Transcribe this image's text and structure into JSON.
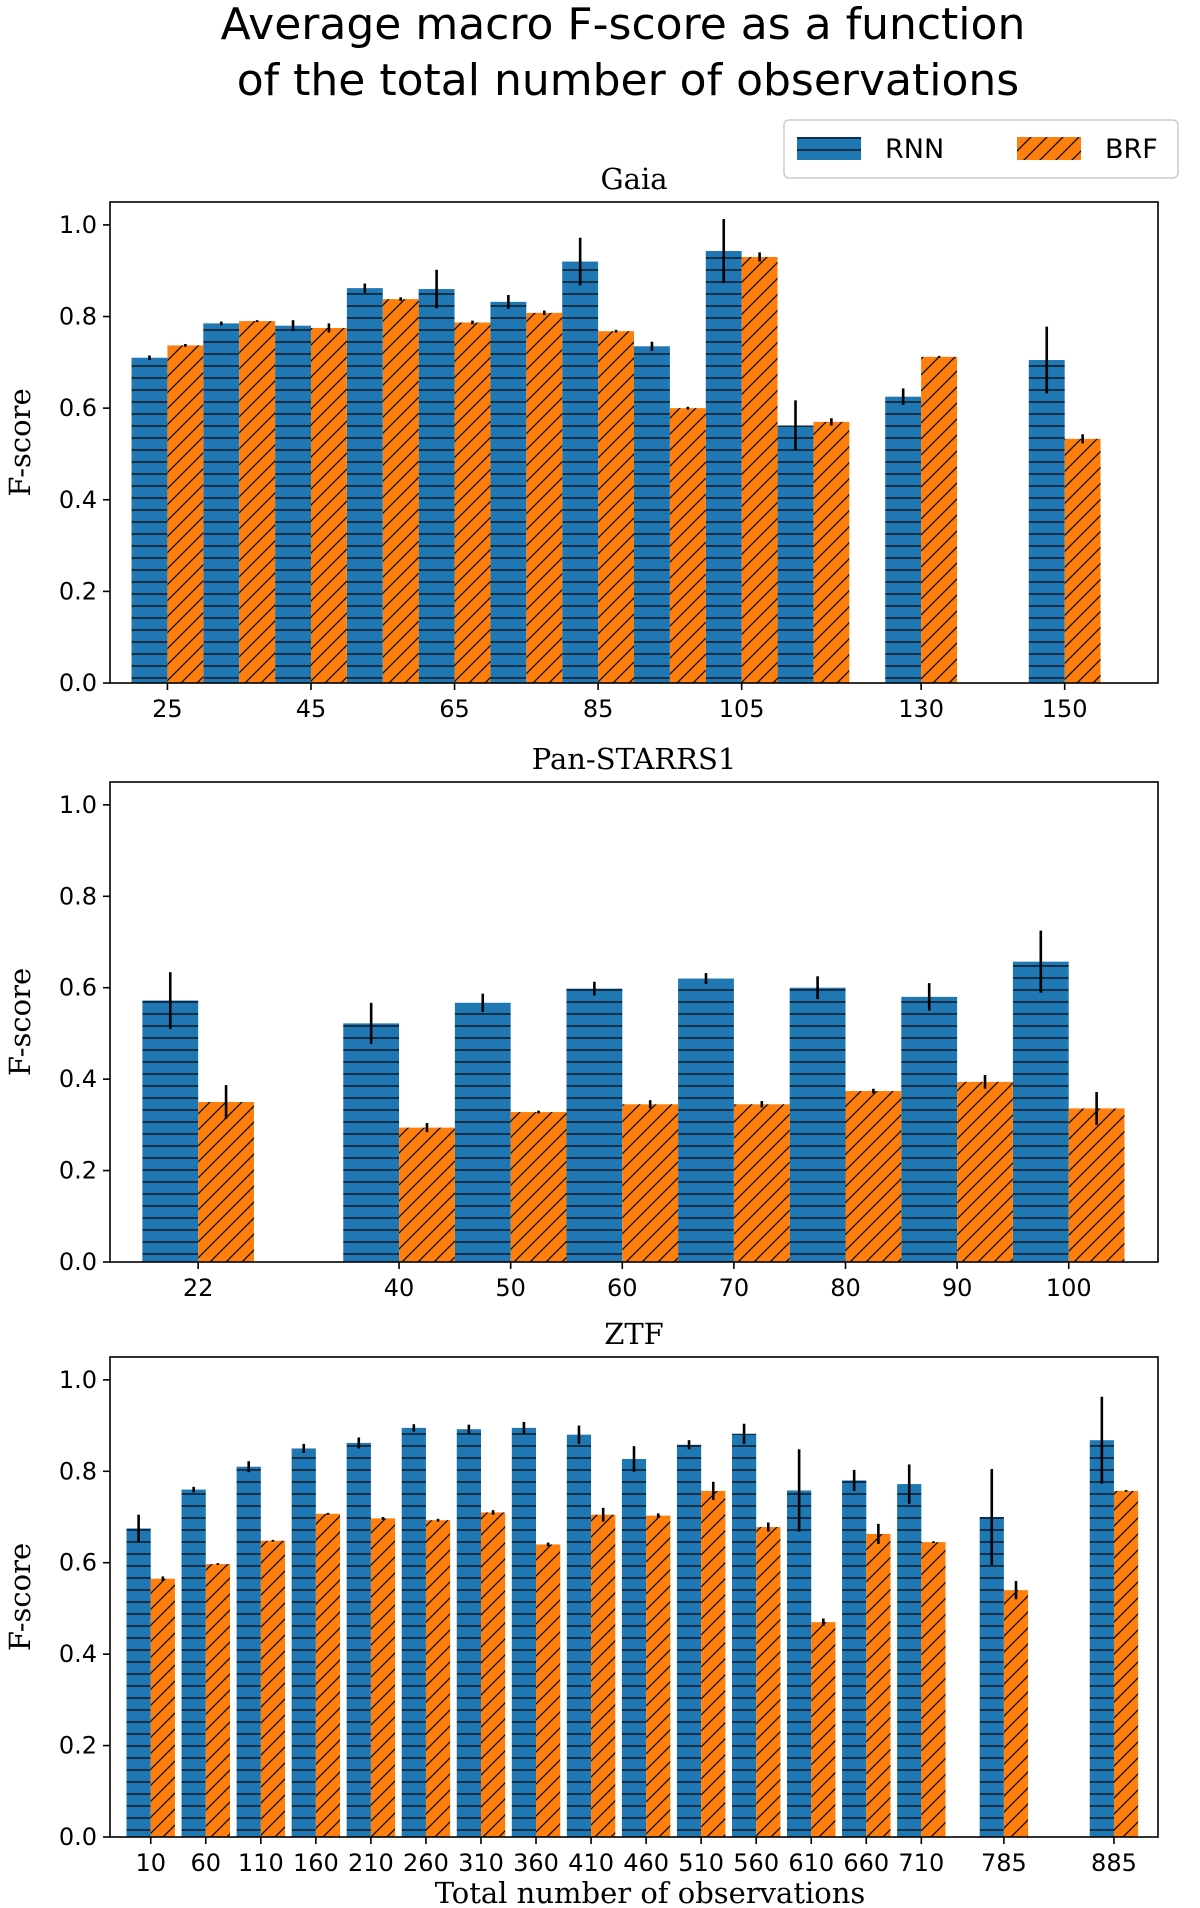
{
  "figure": {
    "title_line1": "Average macro F-score as a function",
    "title_line2": "of the total number of observations",
    "xlabel": "Total number of observations"
  },
  "legend": {
    "items": [
      {
        "label": "RNN",
        "color": "#1f77b4",
        "hatch": "horizontal"
      },
      {
        "label": "BRF",
        "color": "#ff7f0e",
        "hatch": "diagonal"
      }
    ]
  },
  "chart_data": [
    {
      "type": "bar",
      "title": "Gaia",
      "ylabel": "F-score",
      "ylim": [
        0,
        1.05
      ],
      "yticks": [
        "0.0",
        "0.2",
        "0.4",
        "0.6",
        "0.8",
        "1.0"
      ],
      "x": [
        25,
        35,
        45,
        55,
        65,
        75,
        85,
        95,
        105,
        115,
        130,
        150
      ],
      "x_range": [
        17,
        163
      ],
      "tick_values": [
        25,
        45,
        65,
        85,
        105,
        130,
        150
      ],
      "tick_labels": [
        "25",
        "45",
        "65",
        "85",
        "105",
        "130",
        "150"
      ],
      "series": [
        {
          "name": "RNN",
          "values": [
            0.71,
            0.785,
            0.78,
            0.862,
            0.86,
            0.832,
            0.92,
            0.735,
            0.943,
            0.562,
            0.625,
            0.705
          ],
          "errors": [
            0.005,
            0.004,
            0.012,
            0.01,
            0.042,
            0.015,
            0.052,
            0.01,
            0.07,
            0.055,
            0.018,
            0.073
          ]
        },
        {
          "name": "BRF",
          "values": [
            0.737,
            0.79,
            0.775,
            0.838,
            0.787,
            0.808,
            0.768,
            0.6,
            0.93,
            0.57,
            0.712,
            0.533
          ],
          "errors": [
            0.003,
            0.002,
            0.01,
            0.004,
            0.004,
            0.005,
            0.003,
            0.003,
            0.01,
            0.008,
            0.002,
            0.01
          ]
        }
      ]
    },
    {
      "type": "bar",
      "title": "Pan-STARRS1",
      "ylabel": "F-score",
      "ylim": [
        0,
        1.05
      ],
      "yticks": [
        "0.0",
        "0.2",
        "0.4",
        "0.6",
        "0.8",
        "1.0"
      ],
      "x": [
        22,
        40,
        50,
        60,
        70,
        80,
        90,
        100
      ],
      "x_range": [
        14.1,
        108
      ],
      "tick_values": [
        22,
        40,
        50,
        60,
        70,
        80,
        90,
        100
      ],
      "tick_labels": [
        "22",
        "40",
        "50",
        "60",
        "70",
        "80",
        "90",
        "100"
      ],
      "series": [
        {
          "name": "RNN",
          "values": [
            0.572,
            0.522,
            0.567,
            0.598,
            0.62,
            0.6,
            0.58,
            0.657
          ],
          "errors": [
            0.062,
            0.045,
            0.02,
            0.015,
            0.012,
            0.025,
            0.03,
            0.068
          ]
        },
        {
          "name": "BRF",
          "values": [
            0.35,
            0.294,
            0.328,
            0.345,
            0.345,
            0.374,
            0.394,
            0.336
          ],
          "errors": [
            0.037,
            0.01,
            0.003,
            0.009,
            0.007,
            0.005,
            0.015,
            0.036
          ]
        }
      ]
    },
    {
      "type": "bar",
      "title": "ZTF",
      "ylabel": "F-score",
      "ylim": [
        0,
        1.05
      ],
      "yticks": [
        "0.0",
        "0.2",
        "0.4",
        "0.6",
        "0.8",
        "1.0"
      ],
      "x": [
        10,
        60,
        110,
        160,
        210,
        260,
        310,
        360,
        410,
        460,
        510,
        560,
        610,
        660,
        710,
        785,
        885
      ],
      "x_range": [
        -27,
        925
      ],
      "tick_values": [
        10,
        60,
        110,
        160,
        210,
        260,
        310,
        360,
        410,
        460,
        510,
        560,
        610,
        660,
        710,
        785,
        885
      ],
      "tick_labels": [
        "10",
        "60",
        "110",
        "160",
        "210",
        "260",
        "310",
        "360",
        "410",
        "460",
        "510",
        "560",
        "610",
        "660",
        "710",
        "785",
        "885"
      ],
      "series": [
        {
          "name": "RNN",
          "values": [
            0.675,
            0.76,
            0.81,
            0.85,
            0.862,
            0.895,
            0.892,
            0.895,
            0.88,
            0.827,
            0.858,
            0.882,
            0.758,
            0.78,
            0.772,
            0.7,
            0.868
          ],
          "errors": [
            0.03,
            0.006,
            0.012,
            0.01,
            0.012,
            0.008,
            0.01,
            0.013,
            0.02,
            0.028,
            0.01,
            0.022,
            0.09,
            0.023,
            0.043,
            0.105,
            0.095
          ]
        },
        {
          "name": "BRF",
          "values": [
            0.565,
            0.597,
            0.648,
            0.707,
            0.697,
            0.693,
            0.71,
            0.64,
            0.705,
            0.703,
            0.757,
            0.678,
            0.47,
            0.663,
            0.645,
            0.54,
            0.757
          ],
          "errors": [
            0.005,
            0.002,
            0.002,
            0.002,
            0.003,
            0.003,
            0.005,
            0.004,
            0.015,
            0.005,
            0.02,
            0.01,
            0.008,
            0.022,
            0.002,
            0.02,
            0.002
          ]
        }
      ]
    }
  ]
}
